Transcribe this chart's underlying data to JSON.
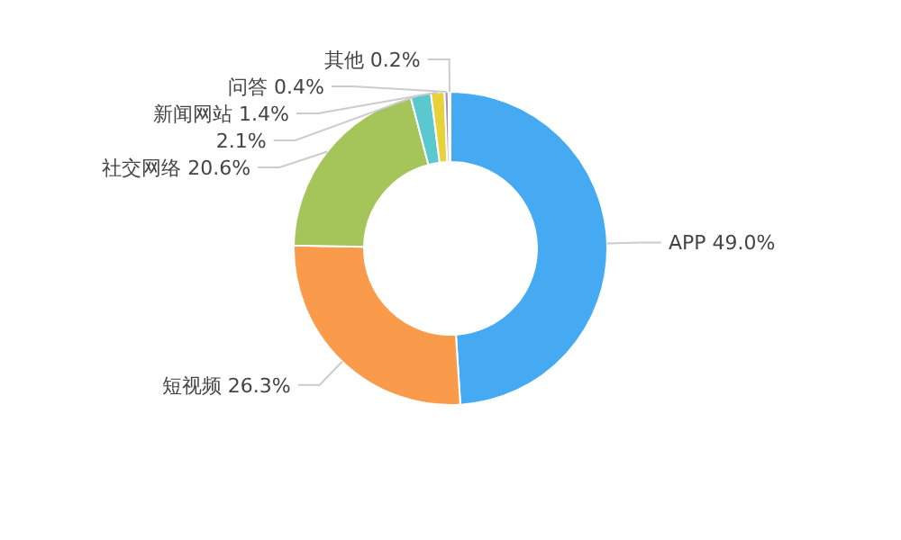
{
  "chart_data": {
    "type": "donut",
    "value_labels": [
      "49.0%",
      "26.3%",
      "20.6%",
      "2.1%",
      "1.4%",
      "0.4%",
      "0.2%"
    ],
    "categories": [
      "APP",
      "短视频",
      "社交网络",
      null,
      "新闻网站",
      "问答",
      "其他"
    ],
    "values": [
      49.0,
      26.3,
      20.6,
      2.1,
      1.4,
      0.4,
      0.2
    ],
    "colors": [
      "#45aaf2",
      "#f99b4b",
      "#a5c55a",
      "#5bc8d0",
      "#e8d23c",
      "#9b8fd8",
      "#b5b5b5"
    ]
  }
}
